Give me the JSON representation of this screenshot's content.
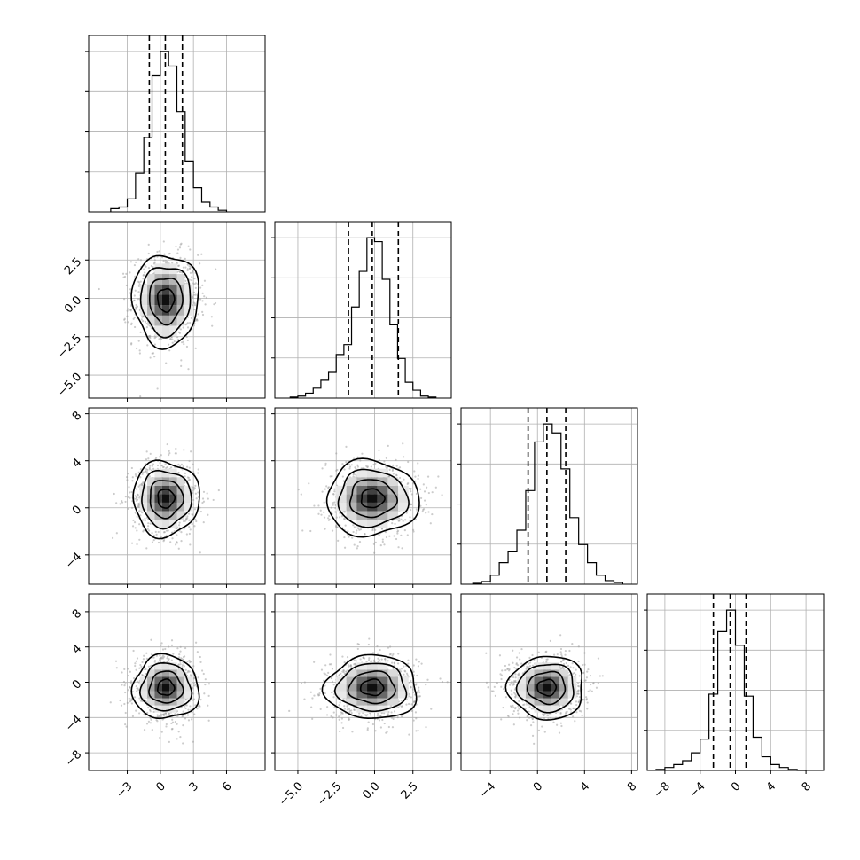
{
  "chart_data": {
    "type": "corner",
    "grid": true,
    "dims": [
      {
        "range": [
          -6.5,
          9.5
        ],
        "ticks": [
          -3,
          0,
          3,
          6
        ],
        "tick_labels": [
          "−3",
          "0",
          "3",
          "6"
        ]
      },
      {
        "range": [
          -6.5,
          5.0
        ],
        "ticks": [
          -5.0,
          -2.5,
          0.0,
          2.5
        ],
        "tick_labels": [
          "−5.0",
          "−2.5",
          "0.0",
          "2.5"
        ]
      },
      {
        "range": [
          -6.5,
          8.5
        ],
        "ticks": [
          -4,
          0,
          4,
          8
        ],
        "tick_labels": [
          "−4",
          "0",
          "4",
          "8"
        ]
      },
      {
        "range": [
          -10.0,
          10.0
        ],
        "ticks": [
          -8,
          -4,
          0,
          4,
          8
        ],
        "tick_labels": [
          "−8",
          "−4",
          "0",
          "4",
          "8"
        ]
      }
    ],
    "histograms": [
      {
        "bin_edges": [
          -4.5,
          -3.75,
          -3.0,
          -2.25,
          -1.5,
          -0.75,
          0.0,
          0.75,
          1.5,
          2.25,
          3.0,
          3.75,
          4.5,
          5.25,
          6.0
        ],
        "counts": [
          2,
          3,
          8,
          24,
          46,
          84,
          99,
          90,
          62,
          31,
          15,
          6,
          3,
          1
        ],
        "quantiles": [
          -1.0,
          0.45,
          2.0
        ]
      },
      {
        "bin_edges": [
          -5.5,
          -5.0,
          -4.5,
          -4.0,
          -3.5,
          -3.0,
          -2.5,
          -2.0,
          -1.5,
          -1.0,
          -0.5,
          0.0,
          0.5,
          1.0,
          1.5,
          2.0,
          2.5,
          3.0,
          3.5,
          4.0
        ],
        "counts": [
          0.5,
          1,
          2.5,
          5,
          9,
          13,
          22,
          27,
          46,
          64,
          81,
          79,
          60,
          37,
          20,
          8,
          4,
          1,
          0.5
        ],
        "quantiles": [
          -1.7,
          -0.15,
          1.55
        ]
      },
      {
        "bin_edges": [
          -5.5,
          -4.75,
          -4.0,
          -3.25,
          -2.5,
          -1.75,
          -1.0,
          -0.25,
          0.5,
          1.25,
          2.0,
          2.75,
          3.5,
          4.25,
          5.0,
          5.75,
          6.5,
          7.25
        ],
        "counts": [
          0.5,
          1.5,
          5,
          12,
          18,
          30,
          52,
          79,
          89,
          84,
          64,
          37,
          22,
          12,
          5,
          2,
          1
        ],
        "quantiles": [
          -0.8,
          0.8,
          2.4
        ]
      },
      {
        "bin_edges": [
          -9.0,
          -8.0,
          -7.0,
          -6.0,
          -5.0,
          -4.0,
          -3.0,
          -2.0,
          -1.0,
          0.0,
          1.0,
          2.0,
          3.0,
          4.0,
          5.0,
          6.0,
          7.0,
          8.0
        ],
        "counts": [
          0.5,
          1.5,
          3,
          5,
          9,
          16,
          39,
          71,
          82,
          64,
          38,
          17,
          7,
          3,
          1.5,
          0.5,
          0
        ],
        "quantiles": [
          -2.5,
          -0.6,
          1.2
        ]
      }
    ],
    "pairs": [
      {
        "x_dim": 0,
        "y_dim": 1,
        "center": [
          0.5,
          -0.1
        ],
        "sigma": [
          1.5,
          1.5
        ],
        "contours_sigma": [
          0.5,
          1.0,
          1.5,
          2.0
        ]
      },
      {
        "x_dim": 0,
        "y_dim": 2,
        "center": [
          0.5,
          0.8
        ],
        "sigma": [
          1.5,
          1.6
        ],
        "contours_sigma": [
          0.5,
          1.0,
          1.5,
          2.0
        ]
      },
      {
        "x_dim": 1,
        "y_dim": 2,
        "center": [
          -0.15,
          0.8
        ],
        "sigma": [
          1.5,
          1.6
        ],
        "contours_sigma": [
          0.5,
          1.0,
          1.5,
          2.0
        ]
      },
      {
        "x_dim": 0,
        "y_dim": 3,
        "center": [
          0.5,
          -0.6
        ],
        "sigma": [
          1.5,
          1.8
        ],
        "contours_sigma": [
          0.5,
          1.0,
          1.5,
          2.0
        ]
      },
      {
        "x_dim": 1,
        "y_dim": 3,
        "center": [
          -0.15,
          -0.6
        ],
        "sigma": [
          1.5,
          1.8
        ],
        "contours_sigma": [
          0.5,
          1.0,
          1.5,
          2.0
        ]
      },
      {
        "x_dim": 2,
        "y_dim": 3,
        "center": [
          0.8,
          -0.6
        ],
        "sigma": [
          1.6,
          1.8
        ],
        "contours_sigma": [
          0.5,
          1.0,
          1.5,
          2.0
        ]
      }
    ]
  }
}
